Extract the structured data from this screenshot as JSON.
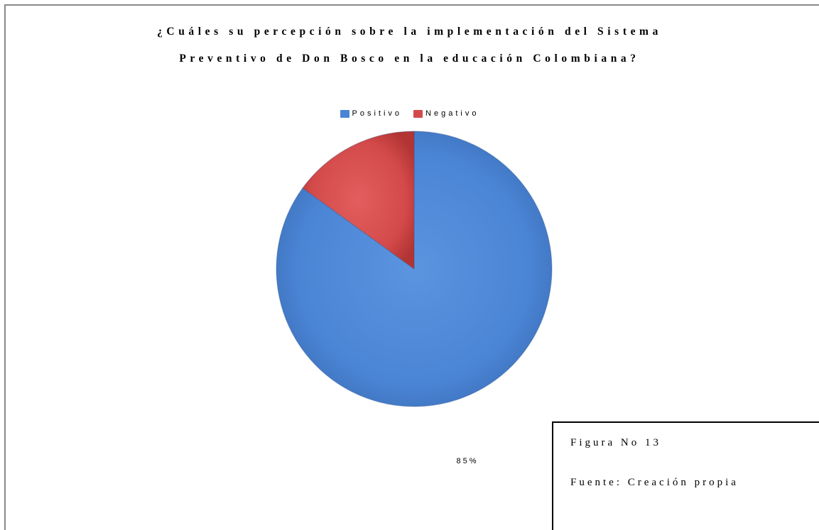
{
  "chart_data": {
    "type": "pie",
    "title_lines": [
      "¿Cuáles su percepción sobre la implementación del Sistema",
      "Preventivo de Don Bosco en la educación Colombiana?"
    ],
    "categories": [
      "Positivo",
      "Negativo"
    ],
    "values": [
      85,
      15
    ],
    "colors": [
      "#4a84d4",
      "#d44a4a"
    ],
    "data_labels": [
      "85%",
      ""
    ],
    "legend_position": "top"
  },
  "caption": {
    "figure": "Figura No 13",
    "source": "Fuente: Creación propia"
  }
}
